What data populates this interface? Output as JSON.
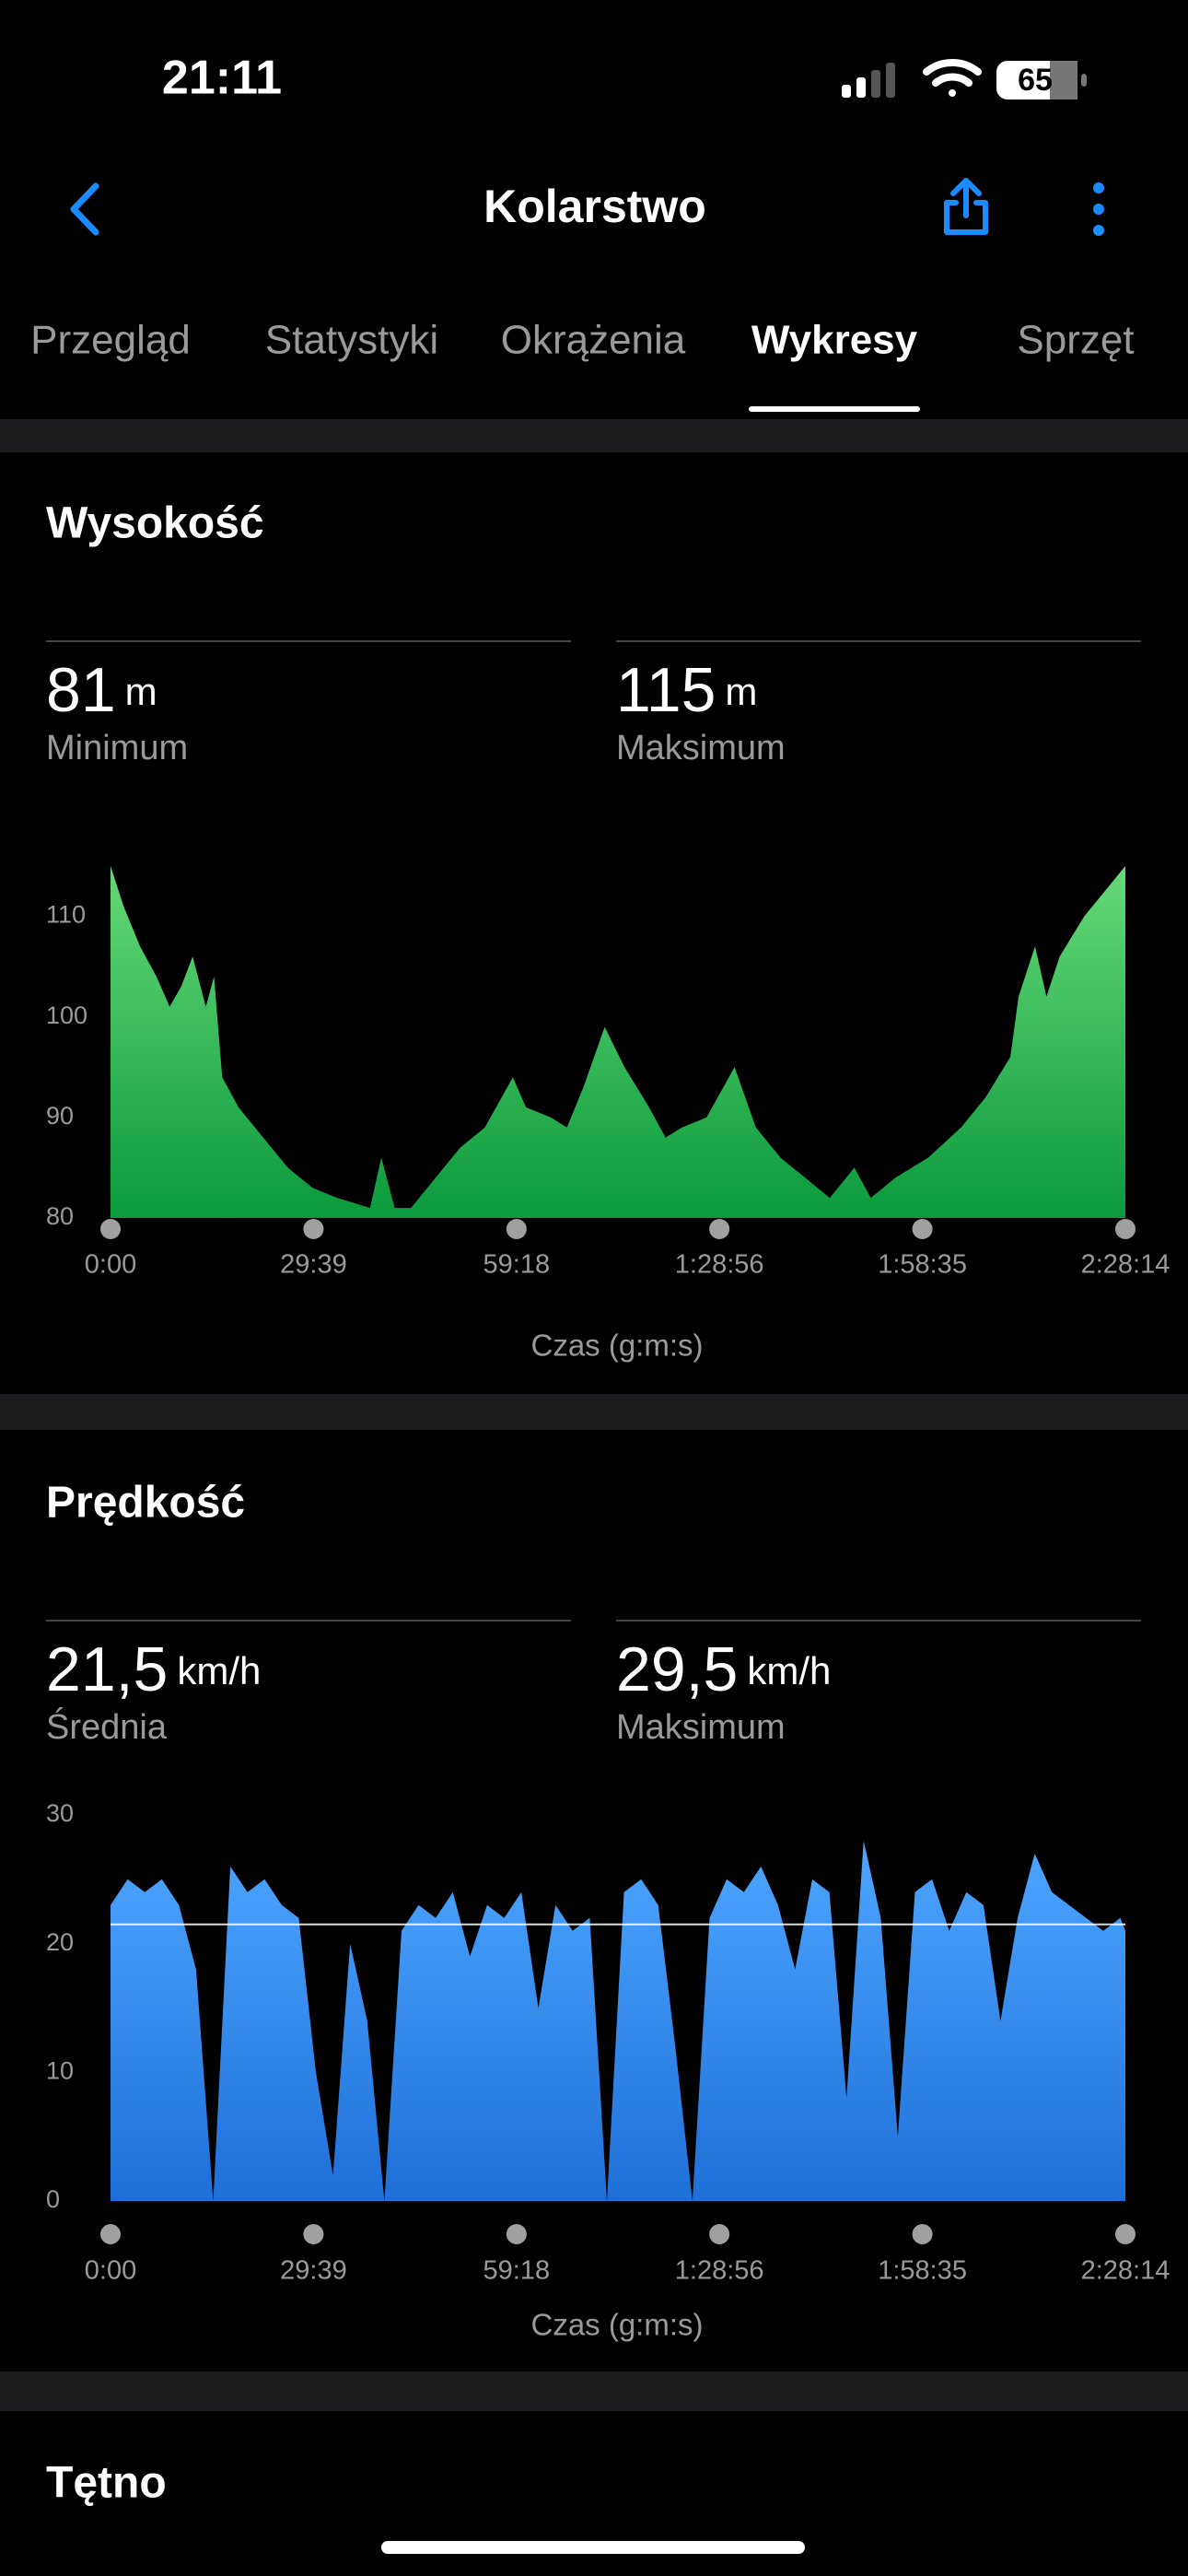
{
  "status_bar": {
    "time": "21:11",
    "battery": "65"
  },
  "header": {
    "title": "Kolarstwo"
  },
  "tabs": [
    "Przegląd",
    "Statystyki",
    "Okrążenia",
    "Wykresy",
    "Sprzęt"
  ],
  "active_tab": 3,
  "chart_data": [
    {
      "type": "area",
      "title": "Wysokość",
      "stats": [
        {
          "value": "81",
          "unit": "m",
          "label": "Minimum"
        },
        {
          "value": "115",
          "unit": "m",
          "label": "Maksimum"
        }
      ],
      "x": [
        0,
        115,
        259,
        403,
        518,
        619,
        720,
        835,
        907,
        979,
        1122,
        1338,
        1554,
        1770,
        1986,
        2130,
        2274,
        2374,
        2490,
        2633,
        2705,
        2849,
        3065,
        3281,
        3526,
        3641,
        3857,
        4000,
        4144,
        4331,
        4504,
        4720,
        4864,
        5008,
        5224,
        5469,
        5656,
        5871,
        6087,
        6303,
        6519,
        6663,
        6879,
        7166,
        7454,
        7670,
        7886,
        7958,
        8102,
        8202,
        8318,
        8534,
        8750,
        8894
      ],
      "values": [
        115,
        111,
        107,
        104,
        101,
        103,
        106,
        101,
        104,
        94,
        91,
        88,
        85,
        83,
        82,
        81.5,
        81,
        86,
        81,
        81,
        82,
        84,
        87,
        89,
        94,
        91,
        90,
        89,
        93,
        99,
        95,
        91,
        88,
        89,
        90,
        95,
        89,
        86,
        84,
        82,
        85,
        82,
        84,
        86,
        89,
        92,
        96,
        102,
        107,
        102,
        106,
        110,
        113,
        115
      ],
      "colors": [
        "#66d977",
        "#0b9a3c"
      ],
      "xlim": [
        0,
        8894
      ],
      "ylim": [
        80,
        116
      ],
      "xticks": [
        {
          "value": 0,
          "label": "0:00"
        },
        {
          "value": 1779,
          "label": "29:39"
        },
        {
          "value": 3558,
          "label": "59:18"
        },
        {
          "value": 5336,
          "label": "1:28:56"
        },
        {
          "value": 7115,
          "label": "1:58:35"
        },
        {
          "value": 8894,
          "label": "2:28:14"
        }
      ],
      "yticks": [
        80,
        90,
        100,
        110
      ],
      "xlabel": "Czas (g:m:s)",
      "grid": false
    },
    {
      "type": "area",
      "title": "Prędkość",
      "stats": [
        {
          "value": "21,5",
          "unit": "km/h",
          "label": "Średnia"
        },
        {
          "value": "29,5",
          "unit": "km/h",
          "label": "Maksimum"
        }
      ],
      "x": [
        0,
        150,
        300,
        450,
        600,
        750,
        900,
        1050,
        1200,
        1350,
        1500,
        1650,
        1800,
        1950,
        2100,
        2250,
        2400,
        2550,
        2700,
        2850,
        3000,
        3150,
        3300,
        3450,
        3600,
        3750,
        3900,
        4050,
        4200,
        4350,
        4500,
        4650,
        4800,
        4950,
        5100,
        5250,
        5400,
        5550,
        5700,
        5850,
        6000,
        6150,
        6300,
        6450,
        6600,
        6750,
        6900,
        7050,
        7200,
        7350,
        7500,
        7650,
        7800,
        7950,
        8100,
        8250,
        8400,
        8550,
        8700,
        8850,
        8894
      ],
      "values": [
        23,
        25,
        24,
        25,
        23,
        18,
        0,
        26,
        24,
        25,
        23,
        22,
        10,
        2,
        20,
        14,
        0,
        21,
        23,
        22,
        24,
        19,
        23,
        22,
        24,
        15,
        23,
        21,
        22,
        0,
        24,
        25,
        23,
        12,
        0,
        22,
        25,
        24,
        26,
        23,
        18,
        25,
        24,
        8,
        28,
        22,
        5,
        24,
        25,
        21,
        24,
        23,
        14,
        22,
        27,
        24,
        23,
        22,
        21,
        22,
        21
      ],
      "average_line": 21.5,
      "colors": [
        "#4ea6ff",
        "#1e6fd8"
      ],
      "xlim": [
        0,
        8894
      ],
      "ylim": [
        0,
        30
      ],
      "xticks": [
        {
          "value": 0,
          "label": "0:00"
        },
        {
          "value": 1779,
          "label": "29:39"
        },
        {
          "value": 3558,
          "label": "59:18"
        },
        {
          "value": 5336,
          "label": "1:28:56"
        },
        {
          "value": 7115,
          "label": "1:58:35"
        },
        {
          "value": 8894,
          "label": "2:28:14"
        }
      ],
      "yticks": [
        0,
        10,
        20,
        30
      ],
      "xlabel": "Czas (g:m:s)",
      "grid": false
    }
  ],
  "next_section": "Tętno"
}
